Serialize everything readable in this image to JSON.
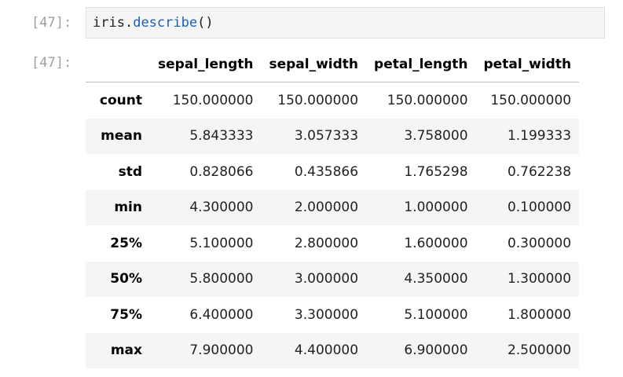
{
  "input_cell": {
    "prompt": "[47]:",
    "code": {
      "object": "iris",
      "dot": ".",
      "method": "describe",
      "parens": "()"
    }
  },
  "output_cell": {
    "prompt": "[47]:",
    "table": {
      "columns": [
        "sepal_length",
        "sepal_width",
        "petal_length",
        "petal_width"
      ],
      "rows": [
        {
          "label": "count",
          "values": [
            "150.000000",
            "150.000000",
            "150.000000",
            "150.000000"
          ]
        },
        {
          "label": "mean",
          "values": [
            "5.843333",
            "3.057333",
            "3.758000",
            "1.199333"
          ]
        },
        {
          "label": "std",
          "values": [
            "0.828066",
            "0.435866",
            "1.765298",
            "0.762238"
          ]
        },
        {
          "label": "min",
          "values": [
            "4.300000",
            "2.000000",
            "1.000000",
            "0.100000"
          ]
        },
        {
          "label": "25%",
          "values": [
            "5.100000",
            "2.800000",
            "1.600000",
            "0.300000"
          ]
        },
        {
          "label": "50%",
          "values": [
            "5.800000",
            "3.000000",
            "4.350000",
            "1.300000"
          ]
        },
        {
          "label": "75%",
          "values": [
            "6.400000",
            "3.300000",
            "5.100000",
            "1.800000"
          ]
        },
        {
          "label": "max",
          "values": [
            "7.900000",
            "4.400000",
            "6.900000",
            "2.500000"
          ]
        }
      ]
    }
  }
}
